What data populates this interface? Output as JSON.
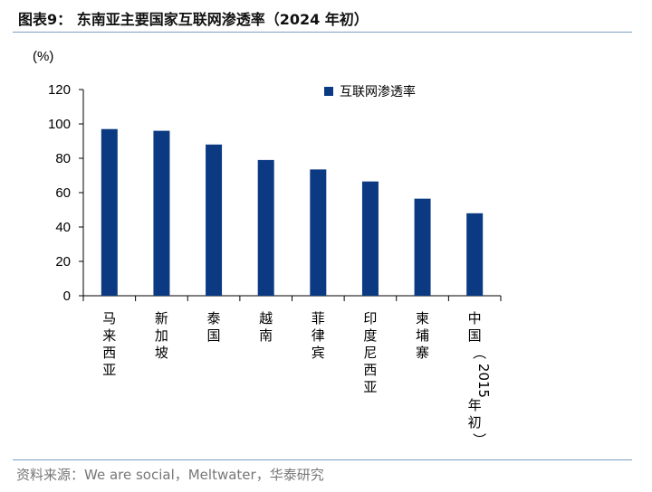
{
  "figure": {
    "title": "图表9：  东南亚主要国家互联网渗透率（2024 年初）",
    "source": "资料来源：We are social，Meltwater，华泰研究"
  },
  "chart_data": {
    "type": "bar",
    "title": "",
    "unit_label": "(%)",
    "xlabel": "",
    "ylabel": "",
    "ylim": [
      0,
      120
    ],
    "yticks": [
      0,
      20,
      40,
      60,
      80,
      100,
      120
    ],
    "categories": [
      "马来西亚",
      "新加坡",
      "泰国",
      "越南",
      "菲律宾",
      "印度尼西亚",
      "柬埔寨",
      "中国（2015年初）"
    ],
    "series": [
      {
        "name": "互联网渗透率",
        "values": [
          97,
          96,
          88,
          79,
          73.5,
          66.5,
          56.5,
          48
        ]
      }
    ],
    "legend_position": "top-right",
    "grid": false,
    "colors": {
      "bar": "#0b3a82"
    }
  }
}
